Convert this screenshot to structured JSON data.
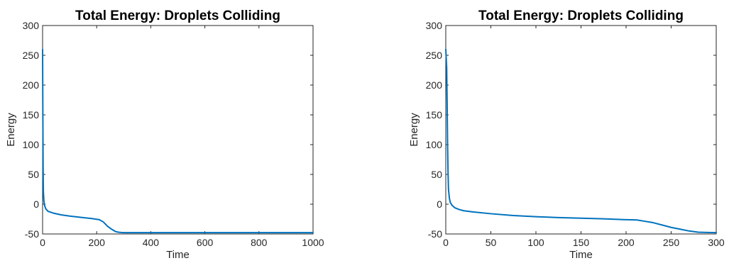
{
  "chart_data": [
    {
      "type": "line",
      "title": "Total Energy: Droplets Colliding",
      "xlabel": "Time",
      "ylabel": "Energy",
      "xlim": [
        0,
        1000
      ],
      "ylim": [
        -50,
        300
      ],
      "xticks": [
        0,
        200,
        400,
        600,
        800,
        1000
      ],
      "yticks": [
        -50,
        0,
        50,
        100,
        150,
        200,
        250,
        300
      ],
      "grid": false,
      "series_color": "#0072BD",
      "series": [
        {
          "x": [
            0,
            1,
            2,
            3,
            5,
            8,
            12,
            20,
            40,
            70,
            100,
            140,
            180,
            210,
            225,
            240,
            255,
            270,
            280,
            290,
            300,
            350,
            400,
            500,
            600,
            700,
            800,
            900,
            1000
          ],
          "y": [
            260,
            150,
            60,
            20,
            5,
            -3,
            -8,
            -12,
            -15,
            -18,
            -20,
            -22,
            -24,
            -26,
            -30,
            -37,
            -42,
            -46,
            -47,
            -47.5,
            -47.7,
            -47.8,
            -47.8,
            -47.8,
            -47.8,
            -47.8,
            -47.8,
            -47.8,
            -47.8
          ]
        }
      ]
    },
    {
      "type": "line",
      "title": "Total Energy: Droplets Colliding",
      "xlabel": "Time",
      "ylabel": "Energy",
      "xlim": [
        0,
        300
      ],
      "ylim": [
        -50,
        300
      ],
      "xticks": [
        0,
        50,
        100,
        150,
        200,
        250,
        300
      ],
      "yticks": [
        -50,
        0,
        50,
        100,
        150,
        200,
        250,
        300
      ],
      "grid": false,
      "series_color": "#0072BD",
      "series": [
        {
          "x": [
            0,
            1,
            1.5,
            2,
            2.5,
            3,
            4,
            5,
            7,
            10,
            15,
            20,
            30,
            50,
            75,
            100,
            125,
            150,
            175,
            200,
            212,
            220,
            230,
            240,
            250,
            260,
            270,
            280,
            290,
            300
          ],
          "y": [
            260,
            230,
            170,
            100,
            55,
            25,
            10,
            3,
            -2,
            -6,
            -9,
            -11,
            -13,
            -16,
            -19,
            -21,
            -22.5,
            -23.5,
            -24.5,
            -26,
            -26.5,
            -28.5,
            -31,
            -35,
            -39,
            -42,
            -45,
            -47,
            -47.5,
            -47.8
          ]
        }
      ]
    }
  ]
}
